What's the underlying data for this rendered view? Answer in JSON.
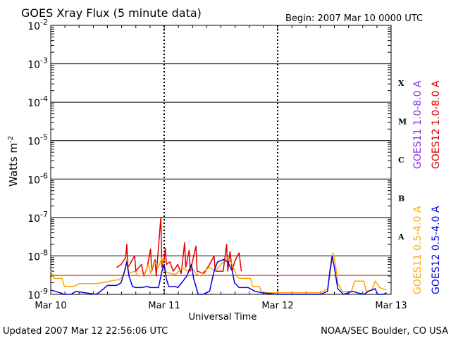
{
  "chart_data": {
    "type": "line",
    "title": "GOES Xray Flux (5 minute data)",
    "begin_label": "Begin:  2007 Mar 10 0000 UTC",
    "ylabel": "Watts m",
    "ylabel_sup": "-2",
    "xlabel": "Universal Time",
    "y_scale": "log",
    "ylim": [
      1e-09,
      0.01
    ],
    "y_ticks": [
      {
        "exp": "-2",
        "value": 0.01
      },
      {
        "exp": "-3",
        "value": 0.001
      },
      {
        "exp": "-4",
        "value": 0.0001
      },
      {
        "exp": "-5",
        "value": 1e-05
      },
      {
        "exp": "-6",
        "value": 1e-06
      },
      {
        "exp": "-7",
        "value": 1e-07
      },
      {
        "exp": "-8",
        "value": 1e-08
      },
      {
        "exp": "-9",
        "value": 1e-09
      }
    ],
    "x_ticks": [
      "Mar 10",
      "Mar 11",
      "Mar 12",
      "Mar 13"
    ],
    "xlim_days": [
      0,
      3
    ],
    "flare_classes": [
      {
        "label": "X",
        "value": 0.000316
      },
      {
        "label": "M",
        "value": 3.16e-05
      },
      {
        "label": "C",
        "value": 3.16e-06
      },
      {
        "label": "B",
        "value": 3.16e-07
      },
      {
        "label": "A",
        "value": 3.16e-08
      }
    ],
    "threshold_line": {
      "value": 3.1e-09,
      "color": "#e00000"
    },
    "series": [
      {
        "name": "GOES11 1.0-8.0 A",
        "color": "#8a2be2",
        "points": []
      },
      {
        "name": "GOES12 1.0-8.0 A",
        "color": "#e00000",
        "points": [
          [
            0.58,
            5e-09
          ],
          [
            0.62,
            6e-09
          ],
          [
            0.66,
            9e-09
          ],
          [
            0.67,
            2e-08
          ],
          [
            0.68,
            5e-09
          ],
          [
            0.74,
            1e-08
          ],
          [
            0.75,
            4e-09
          ],
          [
            0.8,
            6e-09
          ],
          [
            0.82,
            3e-09
          ],
          [
            0.85,
            5e-09
          ],
          [
            0.88,
            1.5e-08
          ],
          [
            0.89,
            4e-09
          ],
          [
            0.92,
            8e-09
          ],
          [
            0.93,
            3e-09
          ],
          [
            0.97,
            1e-07
          ],
          [
            0.98,
            5e-09
          ],
          [
            1.0,
            8e-09
          ],
          [
            1.01,
            1.6e-08
          ],
          [
            1.02,
            6e-09
          ],
          [
            1.05,
            7e-09
          ],
          [
            1.08,
            4e-09
          ],
          [
            1.12,
            6e-09
          ],
          [
            1.15,
            3.5e-09
          ],
          [
            1.18,
            2.2e-08
          ],
          [
            1.19,
            5e-09
          ],
          [
            1.22,
            1.4e-08
          ],
          [
            1.23,
            4e-09
          ],
          [
            1.28,
            1.8e-08
          ],
          [
            1.29,
            4e-09
          ],
          [
            1.35,
            3.5e-09
          ],
          [
            1.4,
            6e-09
          ],
          [
            1.44,
            1e-08
          ],
          [
            1.45,
            4e-09
          ],
          [
            1.52,
            4e-09
          ],
          [
            1.55,
            2e-08
          ],
          [
            1.56,
            4e-09
          ],
          [
            1.58,
            1.3e-08
          ],
          [
            1.6,
            4e-09
          ],
          [
            1.62,
            7e-09
          ],
          [
            1.66,
            1.2e-08
          ],
          [
            1.68,
            4e-09
          ]
        ]
      },
      {
        "name": "GOES11 0.5-4.0 A",
        "color": "#ffa500",
        "points": [
          [
            0.0,
            4e-09
          ],
          [
            0.03,
            2.6e-09
          ],
          [
            0.1,
            2.6e-09
          ],
          [
            0.12,
            1.6e-09
          ],
          [
            0.2,
            1.6e-09
          ],
          [
            0.25,
            1.9e-09
          ],
          [
            0.4,
            1.9e-09
          ],
          [
            0.45,
            2e-09
          ],
          [
            0.55,
            2.3e-09
          ],
          [
            0.6,
            2.4e-09
          ],
          [
            0.64,
            3e-09
          ],
          [
            0.66,
            5e-09
          ],
          [
            0.67,
            8e-09
          ],
          [
            0.69,
            3.5e-09
          ],
          [
            0.74,
            4e-09
          ],
          [
            0.78,
            3e-09
          ],
          [
            0.82,
            3.2e-09
          ],
          [
            0.86,
            6e-09
          ],
          [
            0.88,
            3.5e-09
          ],
          [
            0.91,
            7e-09
          ],
          [
            0.95,
            5e-09
          ],
          [
            0.98,
            9e-09
          ],
          [
            1.0,
            4e-09
          ],
          [
            1.05,
            3.5e-09
          ],
          [
            1.1,
            3.3e-09
          ],
          [
            1.16,
            5e-09
          ],
          [
            1.2,
            4e-09
          ],
          [
            1.24,
            5e-09
          ],
          [
            1.28,
            3.5e-09
          ],
          [
            1.32,
            3e-09
          ],
          [
            1.35,
            4e-09
          ],
          [
            1.4,
            5e-09
          ],
          [
            1.45,
            4e-09
          ],
          [
            1.5,
            6e-09
          ],
          [
            1.56,
            9e-09
          ],
          [
            1.6,
            6e-09
          ],
          [
            1.64,
            3e-09
          ],
          [
            1.66,
            2.6e-09
          ],
          [
            1.76,
            2.6e-09
          ],
          [
            1.78,
            1.6e-09
          ],
          [
            1.84,
            1.6e-09
          ],
          [
            1.86,
            1.1e-09
          ],
          [
            2.0,
            1.1e-09
          ],
          [
            2.15,
            1.1e-09
          ],
          [
            2.38,
            1.1e-09
          ],
          [
            2.44,
            1.4e-09
          ],
          [
            2.47,
            5e-09
          ],
          [
            2.49,
            1.2e-08
          ],
          [
            2.51,
            6e-09
          ],
          [
            2.53,
            2e-09
          ],
          [
            2.57,
            1.2e-09
          ],
          [
            2.65,
            1.2e-09
          ],
          [
            2.68,
            2.2e-09
          ],
          [
            2.76,
            2.2e-09
          ],
          [
            2.78,
            1.2e-09
          ],
          [
            2.83,
            1.3e-09
          ],
          [
            2.86,
            2.2e-09
          ],
          [
            2.9,
            1.5e-09
          ],
          [
            2.96,
            1.3e-09
          ]
        ]
      },
      {
        "name": "GOES12 0.5-4.0 A",
        "color": "#0000e0",
        "points": [
          [
            0.0,
            1.3e-09
          ],
          [
            0.08,
            1.1e-09
          ],
          [
            0.12,
            1e-09
          ],
          [
            0.18,
            1e-09
          ],
          [
            0.22,
            1.2e-09
          ],
          [
            0.3,
            1.1e-09
          ],
          [
            0.4,
            1e-09
          ],
          [
            0.44,
            1.2e-09
          ],
          [
            0.5,
            1.7e-09
          ],
          [
            0.58,
            1.7e-09
          ],
          [
            0.62,
            2e-09
          ],
          [
            0.65,
            4e-09
          ],
          [
            0.67,
            7e-09
          ],
          [
            0.69,
            3e-09
          ],
          [
            0.72,
            1.6e-09
          ],
          [
            0.75,
            1.5e-09
          ],
          [
            0.8,
            1.5e-09
          ],
          [
            0.85,
            1.6e-09
          ],
          [
            0.88,
            1.5e-09
          ],
          [
            0.95,
            1.5e-09
          ],
          [
            0.98,
            4e-09
          ],
          [
            1.0,
            6e-09
          ],
          [
            1.02,
            2.5e-09
          ],
          [
            1.04,
            1.6e-09
          ],
          [
            1.1,
            1.6e-09
          ],
          [
            1.12,
            1.5e-09
          ],
          [
            1.2,
            3e-09
          ],
          [
            1.24,
            6e-09
          ],
          [
            1.26,
            2.5e-09
          ],
          [
            1.28,
            1.6e-09
          ],
          [
            1.3,
            1e-09
          ],
          [
            1.34,
            1e-09
          ],
          [
            1.4,
            1.2e-09
          ],
          [
            1.44,
            4e-09
          ],
          [
            1.47,
            7e-09
          ],
          [
            1.52,
            8e-09
          ],
          [
            1.56,
            7e-09
          ],
          [
            1.6,
            4e-09
          ],
          [
            1.62,
            2e-09
          ],
          [
            1.66,
            1.5e-09
          ],
          [
            1.74,
            1.5e-09
          ],
          [
            1.8,
            1.2e-09
          ],
          [
            1.86,
            1.1e-09
          ],
          [
            2.0,
            1e-09
          ],
          [
            2.15,
            1e-09
          ],
          [
            2.38,
            1e-09
          ],
          [
            2.44,
            1.2e-09
          ],
          [
            2.46,
            4e-09
          ],
          [
            2.48,
            1e-08
          ],
          [
            2.5,
            5e-09
          ],
          [
            2.53,
            1.4e-09
          ],
          [
            2.58,
            1e-09
          ],
          [
            2.66,
            1.2e-09
          ],
          [
            2.7,
            1.1e-09
          ],
          [
            2.76,
            1e-09
          ],
          [
            2.8,
            1.2e-09
          ],
          [
            2.86,
            1.4e-09
          ],
          [
            2.88,
            1e-09
          ],
          [
            2.93,
            1e-09
          ],
          [
            2.96,
            1.1e-09
          ]
        ]
      }
    ]
  },
  "footer": {
    "updated": "Updated 2007 Mar 12 22:56:06 UTC",
    "source": "NOAA/SEC Boulder, CO USA"
  }
}
